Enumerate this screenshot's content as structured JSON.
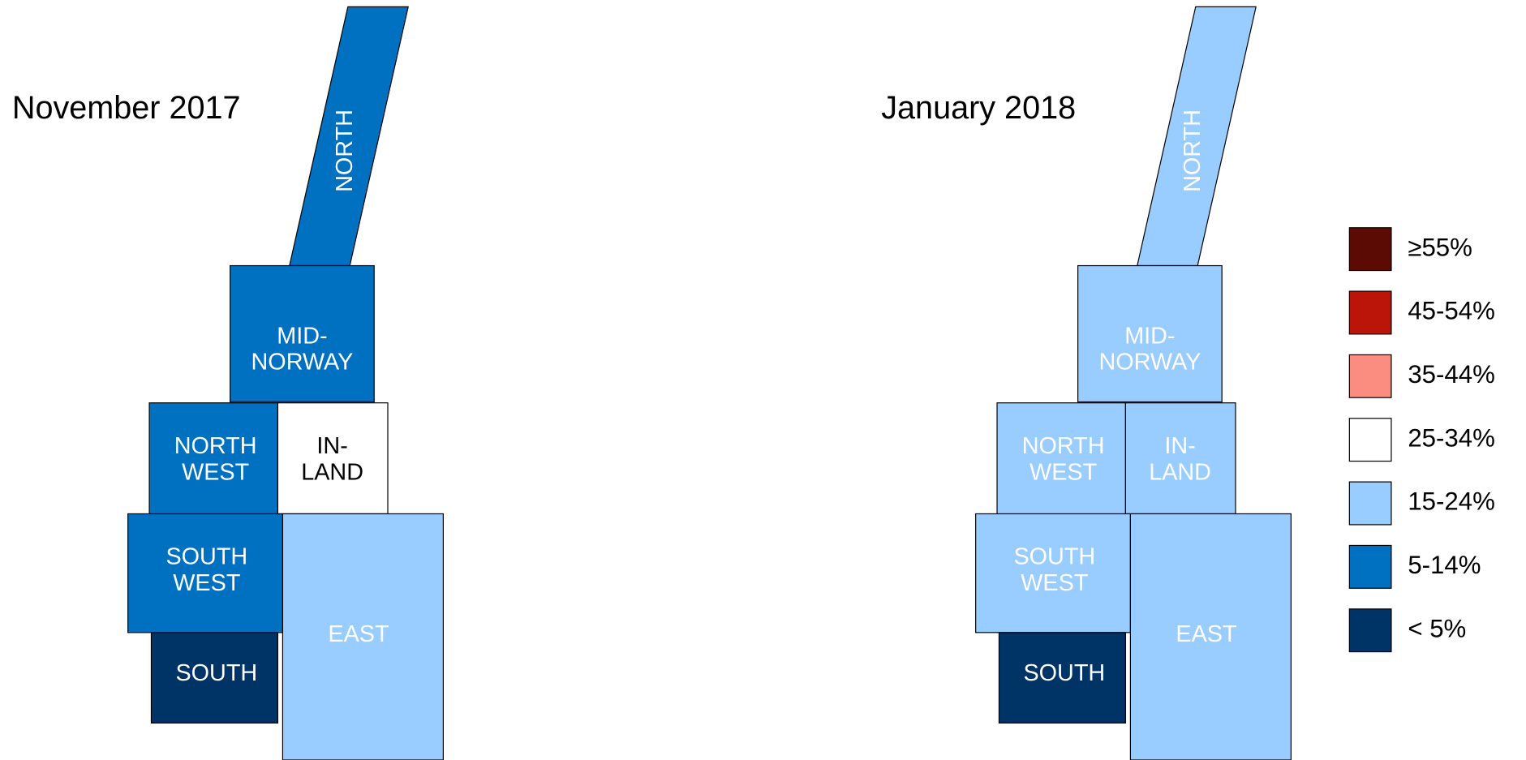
{
  "legend": [
    {
      "label": "≥55%",
      "color": "#5c0a04"
    },
    {
      "label": "45-54%",
      "color": "#bb1408"
    },
    {
      "label": "35-44%",
      "color": "#fb8c80"
    },
    {
      "label": "25-34%",
      "color": "#ffffff"
    },
    {
      "label": "15-24%",
      "color": "#99ccff"
    },
    {
      "label": "5-14%",
      "color": "#0070c0"
    },
    {
      "label": "< 5%",
      "color": "#003366"
    }
  ],
  "maps": [
    {
      "title": "November 2017",
      "regions": [
        {
          "name": [
            "NORTH"
          ],
          "bin": 5
        },
        {
          "name": [
            "MID-",
            "NORWAY"
          ],
          "bin": 5
        },
        {
          "name": [
            "NORTH",
            "WEST"
          ],
          "bin": 5
        },
        {
          "name": [
            "IN-",
            "LAND"
          ],
          "bin": 3
        },
        {
          "name": [
            "SOUTH",
            "WEST"
          ],
          "bin": 5
        },
        {
          "name": [
            "EAST"
          ],
          "bin": 4
        },
        {
          "name": [
            "SOUTH"
          ],
          "bin": 6
        }
      ]
    },
    {
      "title": "January 2018",
      "regions": [
        {
          "name": [
            "NORTH"
          ],
          "bin": 4
        },
        {
          "name": [
            "MID-",
            "NORWAY"
          ],
          "bin": 4
        },
        {
          "name": [
            "NORTH",
            "WEST"
          ],
          "bin": 4
        },
        {
          "name": [
            "IN-",
            "LAND"
          ],
          "bin": 4
        },
        {
          "name": [
            "SOUTH",
            "WEST"
          ],
          "bin": 4
        },
        {
          "name": [
            "EAST"
          ],
          "bin": 4
        },
        {
          "name": [
            "SOUTH"
          ],
          "bin": 6
        }
      ]
    }
  ]
}
